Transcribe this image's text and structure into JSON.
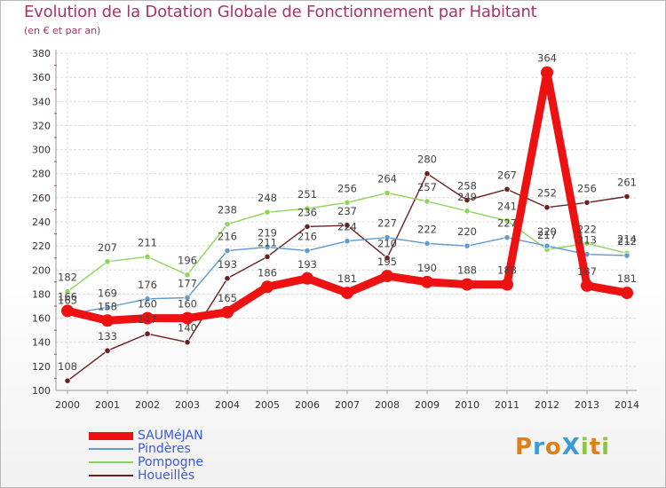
{
  "title": "Evolution de la Dotation Globale de Fonctionnement par Habitant",
  "subtitle": "(en € et par an)",
  "colors": {
    "background": "#ffffff",
    "grid": "#dcdcdc",
    "axis": "#9a9a9a",
    "title": "#a8336b",
    "legend_text": "#3a5ad9",
    "value_label": "#444444"
  },
  "logo": {
    "text": "ProXiti",
    "letters": [
      {
        "ch": "P",
        "color": "#e07f1a"
      },
      {
        "ch": "r",
        "color": "#3c9ad6"
      },
      {
        "ch": "o",
        "color": "#e07f1a"
      },
      {
        "ch": "X",
        "color": "#3c9ad6"
      },
      {
        "ch": "i",
        "color": "#8cc63f"
      },
      {
        "ch": "t",
        "color": "#e07f1a"
      },
      {
        "ch": "i",
        "color": "#8cc63f"
      }
    ]
  },
  "chart_data": {
    "type": "line",
    "title": "Evolution de la Dotation Globale de Fonctionnement par Habitant",
    "subtitle": "(en € et par an)",
    "x": [
      "2000",
      "2001",
      "2002",
      "2003",
      "2004",
      "2005",
      "2006",
      "2007",
      "2008",
      "2009",
      "2010",
      "2011",
      "2012",
      "2013",
      "2014"
    ],
    "yticks": [
      100,
      120,
      140,
      160,
      180,
      200,
      220,
      240,
      260,
      280,
      300,
      320,
      340,
      360,
      380
    ],
    "ylim": [
      100,
      380
    ],
    "grid": true,
    "legend_position": "bottom-left",
    "series": [
      {
        "name": "SAUMéJAN",
        "color": "#ee1111",
        "values": [
          166,
          158,
          160,
          160,
          165,
          186,
          193,
          181,
          195,
          190,
          188,
          188,
          364,
          187,
          181
        ],
        "labels": [
          "166",
          "158",
          "160",
          "160",
          "165",
          "186",
          "193",
          "181",
          "195",
          "190",
          "188",
          "188",
          "364",
          "187",
          "181"
        ]
      },
      {
        "name": "Pindères",
        "color": "#5f9bd0",
        "values": [
          163,
          169,
          176,
          177,
          216,
          219,
          216,
          224,
          227,
          222,
          220,
          227,
          220,
          213,
          212
        ],
        "labels": [
          "163",
          "169",
          "176",
          "177",
          "216",
          "219",
          "216",
          "224",
          "227",
          "222",
          "220",
          "227",
          "220",
          "213",
          "212"
        ]
      },
      {
        "name": "Pompogne",
        "color": "#8fd45c",
        "values": [
          182,
          207,
          211,
          196,
          238,
          248,
          251,
          256,
          264,
          257,
          249,
          241,
          217,
          222,
          214
        ],
        "labels": [
          "182",
          "207",
          "211",
          "196",
          "238",
          "248",
          "251",
          "256",
          "264",
          "257",
          "249",
          "241",
          "217",
          "222",
          "214"
        ]
      },
      {
        "name": "Houeillès",
        "color": "#6b2020",
        "values": [
          108,
          133,
          147,
          140,
          193,
          211,
          236,
          237,
          210,
          280,
          258,
          267,
          252,
          256,
          261
        ],
        "labels": [
          "108",
          "133",
          "147",
          "140",
          "193",
          "211",
          "236",
          "237",
          "210",
          "280",
          "258",
          "267",
          "252",
          "256",
          "261"
        ]
      }
    ]
  }
}
